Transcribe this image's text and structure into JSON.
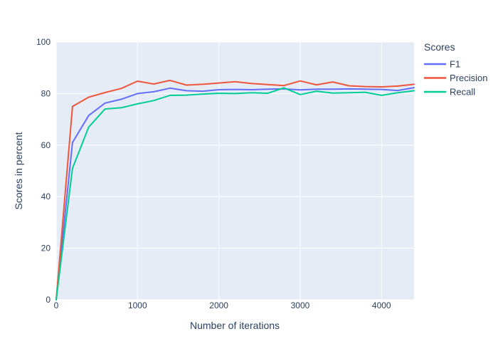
{
  "figure": {
    "background": "#ffffff",
    "plot_bgcolor": "#e5ecf6",
    "grid_color": "#ffffff",
    "text_color": "#2a3f5f"
  },
  "legend": {
    "title": "Scores"
  },
  "chart_data": {
    "type": "line",
    "title": "",
    "xlabel": "Number of iterations",
    "ylabel": "Scores in percent",
    "xlim": [
      0,
      4400
    ],
    "ylim": [
      0,
      100
    ],
    "xticks": [
      0,
      1000,
      2000,
      3000,
      4000
    ],
    "yticks": [
      0,
      20,
      40,
      60,
      80,
      100
    ],
    "grid": true,
    "legend_position": "right-top",
    "x": [
      0,
      200,
      400,
      600,
      800,
      1000,
      1200,
      1400,
      1600,
      1800,
      2000,
      2200,
      2400,
      2600,
      2800,
      3000,
      3200,
      3400,
      3600,
      3800,
      4000,
      4200,
      4400
    ],
    "series": [
      {
        "name": "F1",
        "color": "#636efa",
        "values": [
          0,
          61,
          71.5,
          76.3,
          77.8,
          80,
          80.7,
          82.1,
          81.1,
          80.9,
          81.5,
          81.6,
          81.5,
          81.7,
          81.8,
          81.4,
          81.7,
          81.7,
          81.8,
          81.7,
          81.6,
          81.2,
          82.3
        ]
      },
      {
        "name": "Precision",
        "color": "#ef553b",
        "values": [
          0,
          75,
          78.6,
          80.4,
          82,
          84.8,
          83.7,
          85.1,
          83.3,
          83.6,
          84.1,
          84.6,
          83.9,
          83.5,
          83.1,
          84.9,
          83.4,
          84.5,
          83,
          82.7,
          82.6,
          82.9,
          83.6
        ]
      },
      {
        "name": "Recall",
        "color": "#00cc96",
        "values": [
          0,
          51,
          67,
          74,
          74.5,
          76,
          77.3,
          79.3,
          79.4,
          79.8,
          80.1,
          80,
          80.3,
          80.1,
          82.2,
          79.6,
          80.9,
          80.2,
          80.3,
          80.5,
          79.3,
          80.3,
          81.1
        ]
      }
    ]
  }
}
